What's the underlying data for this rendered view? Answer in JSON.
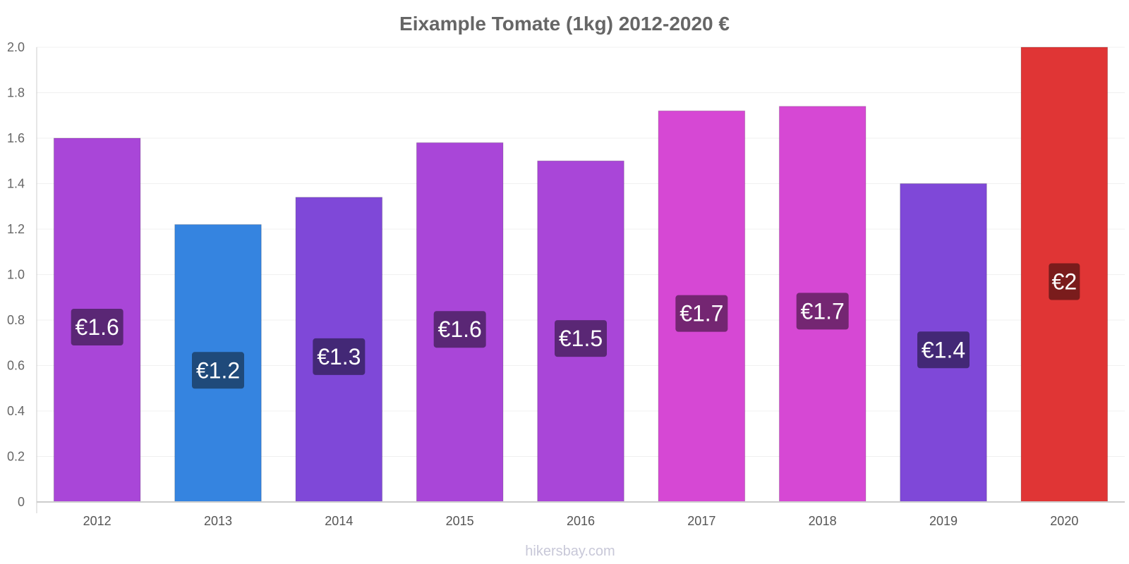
{
  "chart_data": {
    "type": "bar",
    "title": "Eixample Tomate (1kg) 2012-2020 €",
    "categories": [
      "2012",
      "2013",
      "2014",
      "2015",
      "2016",
      "2017",
      "2018",
      "2019",
      "2020"
    ],
    "values": [
      1.6,
      1.22,
      1.34,
      1.58,
      1.5,
      1.72,
      1.74,
      1.4,
      2.0
    ],
    "value_labels": [
      "€1.6",
      "€1.2",
      "€1.3",
      "€1.6",
      "€1.5",
      "€1.7",
      "€1.7",
      "€1.4",
      "€2"
    ],
    "colors": [
      "#a946d8",
      "#3584e0",
      "#7f48d8",
      "#a946d8",
      "#a946d8",
      "#d648d4",
      "#d648d4",
      "#7f48d8",
      "#e03535"
    ],
    "label_bg_colors": [
      "#5a2775",
      "#1f4a7a",
      "#432876",
      "#5a2775",
      "#5a2775",
      "#742672",
      "#742672",
      "#432876",
      "#7a1c1c"
    ],
    "ylim": [
      0,
      2.0
    ],
    "yticks": [
      0,
      0.2,
      0.4,
      0.6,
      0.8,
      1.0,
      1.2,
      1.4,
      1.6,
      1.8,
      2.0
    ],
    "ytick_labels": [
      "0",
      "0.2",
      "0.4",
      "0.6",
      "0.8",
      "1.0",
      "1.2",
      "1.4",
      "1.6",
      "1.8",
      "2.0"
    ],
    "grid": true,
    "legend": "none",
    "watermark": "hikersbay.com"
  }
}
